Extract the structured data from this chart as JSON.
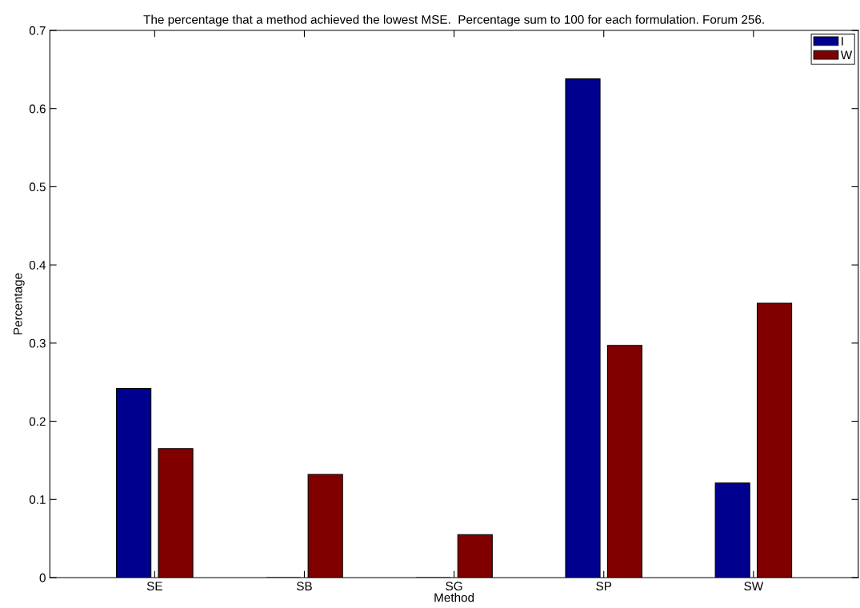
{
  "chart_data": {
    "type": "bar",
    "title": "The percentage that a method achieved the lowest MSE.  Percentage sum to 100 for each formulation. Forum 256.",
    "xlabel": "Method",
    "ylabel": "Percentage",
    "categories": [
      "SE",
      "SB",
      "SG",
      "SP",
      "SW"
    ],
    "series": [
      {
        "name": "I",
        "color": "#00008f",
        "values": [
          0.242,
          0,
          0,
          0.638,
          0.121
        ]
      },
      {
        "name": "W",
        "color": "#800000",
        "values": [
          0.165,
          0.132,
          0.055,
          0.297,
          0.351
        ]
      }
    ],
    "ylim": [
      0,
      0.7
    ],
    "yticks": [
      0,
      0.1,
      0.2,
      0.3,
      0.4,
      0.5,
      0.6,
      0.7
    ],
    "grid": false,
    "legend": "top right"
  }
}
